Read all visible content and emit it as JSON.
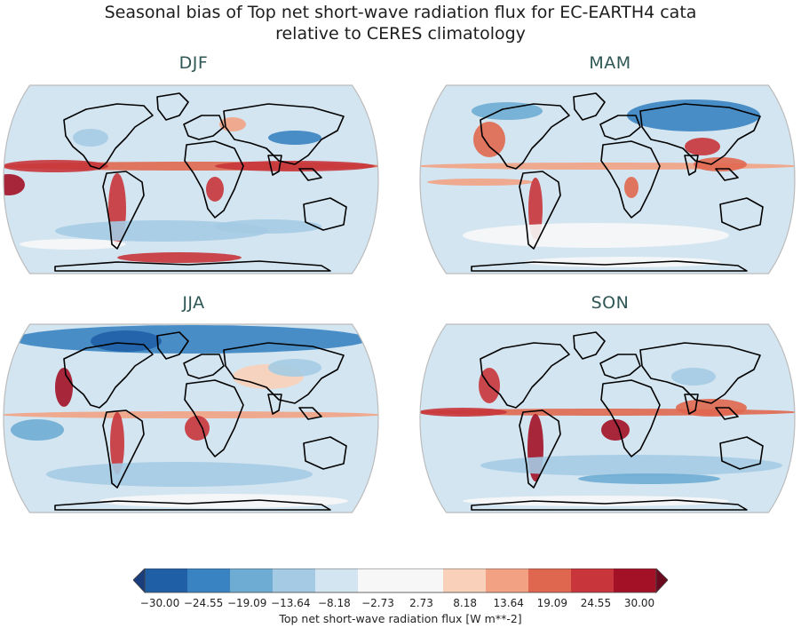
{
  "title_line1": "Seasonal bias of Top net short-wave radiation flux for EC-EARTH4 cata",
  "title_line2": "relative to CERES climatology",
  "panels": [
    {
      "label": "DJF"
    },
    {
      "label": "MAM"
    },
    {
      "label": "JJA"
    },
    {
      "label": "SON"
    }
  ],
  "colorbar": {
    "label": "Top net short-wave radiation flux [W m**-2]",
    "ticks": [
      "−30.00",
      "−24.55",
      "−19.09",
      "−13.64",
      "−8.18",
      "−2.73",
      "2.73",
      "8.18",
      "13.64",
      "19.09",
      "24.55",
      "30.00"
    ],
    "colors": [
      "#1f5fa6",
      "#3a83c2",
      "#6eacd4",
      "#a4cbe3",
      "#d3e5f1",
      "#f7f7f7",
      "#f7f7f7",
      "#f9d0b9",
      "#f2a283",
      "#e0674f",
      "#c8353a",
      "#a31126"
    ],
    "extend_low": "#1a3d7c",
    "extend_high": "#6b0a1f"
  },
  "map_colors": {
    "land_line": "#000000",
    "frame": "#bcbcbc"
  }
}
